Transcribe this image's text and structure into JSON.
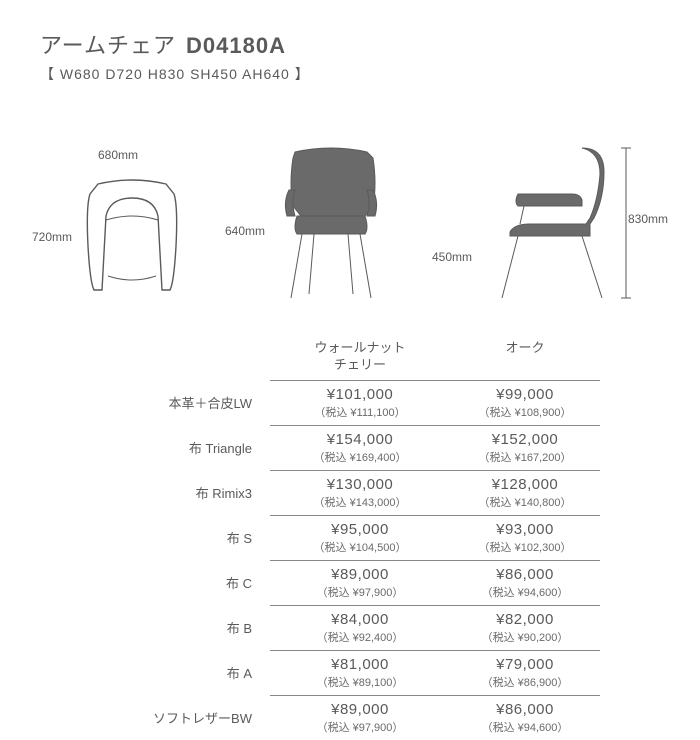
{
  "header": {
    "name": "アームチェア",
    "code": "D04180A",
    "dims_line": "【 W680  D720  H830  SH450  AH640 】"
  },
  "diagrams": {
    "top": {
      "w_label": "680mm",
      "d_label": "720mm"
    },
    "front": {
      "ah_label": "640mm"
    },
    "side": {
      "sh_label": "450mm",
      "h_label": "830mm"
    }
  },
  "table": {
    "col1_line1": "ウォールナット",
    "col1_line2": "チェリー",
    "col2": "オーク",
    "rows": [
      {
        "label": "本革＋合皮LW",
        "c1": "¥101,000",
        "c1t": "（税込 ¥111,100）",
        "c2": "¥99,000",
        "c2t": "（税込 ¥108,900）"
      },
      {
        "label": "布 Triangle",
        "c1": "¥154,000",
        "c1t": "（税込 ¥169,400）",
        "c2": "¥152,000",
        "c2t": "（税込 ¥167,200）"
      },
      {
        "label": "布 Rimix3",
        "c1": "¥130,000",
        "c1t": "（税込 ¥143,000）",
        "c2": "¥128,000",
        "c2t": "（税込 ¥140,800）"
      },
      {
        "label": "布 S",
        "c1": "¥95,000",
        "c1t": "（税込 ¥104,500）",
        "c2": "¥93,000",
        "c2t": "（税込 ¥102,300）"
      },
      {
        "label": "布 C",
        "c1": "¥89,000",
        "c1t": "（税込 ¥97,900）",
        "c2": "¥86,000",
        "c2t": "（税込 ¥94,600）"
      },
      {
        "label": "布 B",
        "c1": "¥84,000",
        "c1t": "（税込 ¥92,400）",
        "c2": "¥82,000",
        "c2t": "（税込 ¥90,200）"
      },
      {
        "label": "布 A",
        "c1": "¥81,000",
        "c1t": "（税込 ¥89,100）",
        "c2": "¥79,000",
        "c2t": "（税込 ¥86,900）"
      },
      {
        "label": "ソフトレザーBW",
        "c1": "¥89,000",
        "c1t": "（税込 ¥97,900）",
        "c2": "¥86,000",
        "c2t": "（税込 ¥94,600）"
      }
    ]
  }
}
